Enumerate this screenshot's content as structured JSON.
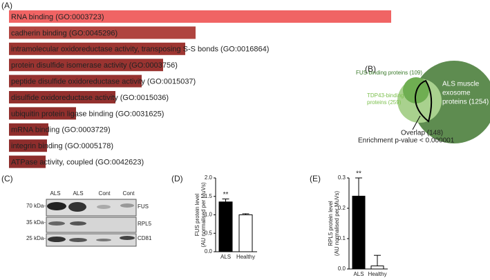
{
  "panels": [
    "(A)",
    "(B)",
    "(C)",
    "(D)",
    "(E)"
  ],
  "chart_data": [
    {
      "type": "hbar",
      "categories": [
        "RNA binding (GO:0003723)",
        "cadherin binding (GO:0045296)",
        "intramolecular oxidoreductase activity, transposing S-S bonds (GO:0016864)",
        "protein disulfide isomerase activity (GO:0003756)",
        "peptide disulfide oxidoreductase activity (GO:0015037)",
        "disulfide oxidoreductase activity (GO:0015036)",
        "ubiquitin protein ligase binding (GO:0031625)",
        "mRNA binding (GO:0003729)",
        "integrin binding (GO:0005178)",
        "ATPase activity, coupled (GO:0042623)"
      ],
      "values": [
        553,
        270,
        255,
        223,
        192,
        154,
        97,
        57,
        55,
        53
      ],
      "colors": [
        "#f06464",
        "#b0443f",
        "#9d3632",
        "#9a3431",
        "#963230",
        "#93302e",
        "#912f2d",
        "#8f2e2c",
        "#8e2d2c",
        "#8d2d2b"
      ],
      "xlim": [
        0,
        600
      ]
    },
    {
      "type": "bar",
      "ylabel": [
        "FUS protein level",
        "(AU normalised per MuVs)"
      ],
      "categories": [
        "ALS",
        "Healthy"
      ],
      "values": [
        1.35,
        1.0
      ],
      "errors": [
        0.08,
        0.03
      ],
      "colors": [
        "#000000",
        "#ffffff"
      ],
      "annotations": [
        "**",
        null
      ],
      "ylim": [
        0,
        2
      ],
      "yticks": [
        {
          "value": 0,
          "label": "0.0"
        },
        {
          "value": 0.5,
          "label": "0.5"
        },
        {
          "value": 1,
          "label": "1.0"
        },
        {
          "value": 1.5,
          "label": "1.5"
        },
        {
          "value": 2,
          "label": "2.0"
        }
      ]
    },
    {
      "type": "bar",
      "ylabel": [
        "RPL5 protein level",
        "(AU normalised per MuVs)"
      ],
      "categories": [
        "ALS",
        "Healthy"
      ],
      "values": [
        0.24,
        0.01
      ],
      "errors": [
        0.06,
        0.035
      ],
      "colors": [
        "#000000",
        "#ffffff"
      ],
      "annotations": [
        "**",
        null
      ],
      "ylim": [
        0,
        0.3
      ],
      "yticks": [
        {
          "value": 0,
          "label": "0.0"
        },
        0.1,
        0.2,
        0.3
      ]
    }
  ],
  "venn": {
    "fus": "FUS-binding proteins (109)",
    "tdp": [
      "TDP43-binding",
      "proteins (259)"
    ],
    "als": [
      "ALS muscle",
      "exosome",
      "proteins (1254)"
    ],
    "overlap": "Overlap (148)",
    "enrichment": "Enrichment p-value < 0.000001"
  },
  "blot": {
    "lanes": [
      "ALS",
      "ALS",
      "Cont",
      "Cont"
    ],
    "sizes": [
      "70 kDa-",
      "35 kDa-",
      "25 kDa-"
    ],
    "proteins": [
      "FUS",
      "RPL5",
      "CD81"
    ]
  }
}
